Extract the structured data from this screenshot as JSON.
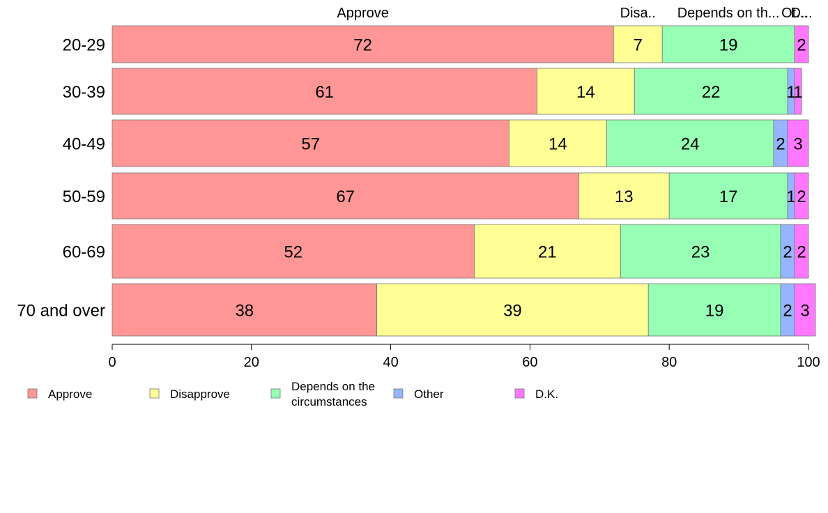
{
  "chart_data": {
    "type": "bar",
    "orientation": "horizontal",
    "stacked": true,
    "categories": [
      "20-29",
      "30-39",
      "40-49",
      "50-59",
      "60-69",
      "70 and over"
    ],
    "series": [
      {
        "name": "Approve",
        "color": "#ff9696",
        "values": [
          72,
          61,
          57,
          67,
          52,
          38
        ]
      },
      {
        "name": "Disapprove",
        "color": "#ffff96",
        "values": [
          7,
          14,
          14,
          13,
          21,
          39
        ]
      },
      {
        "name": "Depends on the circumstances",
        "color": "#96ffb4",
        "values": [
          19,
          22,
          24,
          17,
          23,
          19
        ]
      },
      {
        "name": "Other",
        "color": "#96b4ff",
        "values": [
          0,
          1,
          2,
          1,
          2,
          2
        ]
      },
      {
        "name": "D.K.",
        "color": "#ff78ff",
        "values": [
          2,
          1,
          3,
          2,
          2,
          3
        ]
      }
    ],
    "top_labels": [
      "Approve",
      "Disa..",
      "Depends on th...",
      "Ot...",
      "D..."
    ],
    "xlim": [
      0,
      100
    ],
    "xticks": [
      0,
      20,
      40,
      60,
      80,
      100
    ],
    "legend": {
      "placement": "bottom-left",
      "items": [
        {
          "label": [
            "Approve"
          ],
          "color": "#ff9696"
        },
        {
          "label": [
            "Disapprove"
          ],
          "color": "#ffff96"
        },
        {
          "label": [
            "Depends on the",
            "circumstances"
          ],
          "color": "#96ffb4"
        },
        {
          "label": [
            "Other"
          ],
          "color": "#96b4ff"
        },
        {
          "label": [
            "D.K."
          ],
          "color": "#ff78ff"
        }
      ]
    },
    "grid": false
  }
}
